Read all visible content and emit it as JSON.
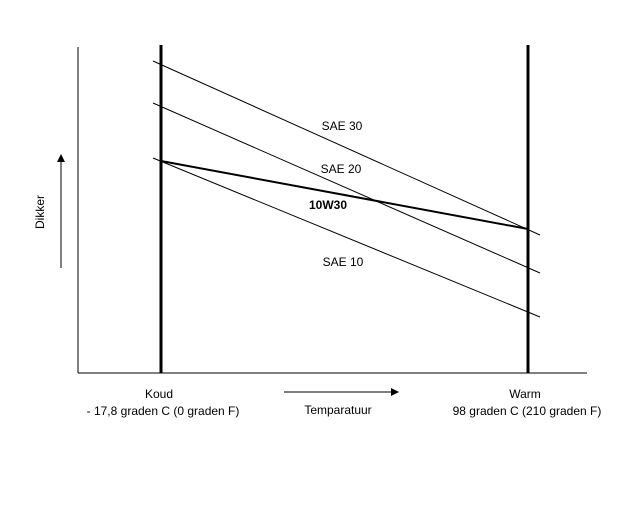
{
  "colors": {
    "background": "#ffffff",
    "ink": "#000000"
  },
  "labels": {
    "y_axis": "Dikker",
    "x_axis": "Temparatuur",
    "cold_title": "Koud",
    "cold_value": "- 17,8 graden C (0 graden F)",
    "warm_title": "Warm",
    "warm_value": "98 graden C (210 graden F)"
  },
  "lines": [
    {
      "id": "sae30",
      "label": "SAE 30",
      "bold": false
    },
    {
      "id": "sae20",
      "label": "SAE 20",
      "bold": false
    },
    {
      "id": "w10w30",
      "label": "10W30",
      "bold": true
    },
    {
      "id": "sae10",
      "label": "SAE 10",
      "bold": false
    }
  ]
}
